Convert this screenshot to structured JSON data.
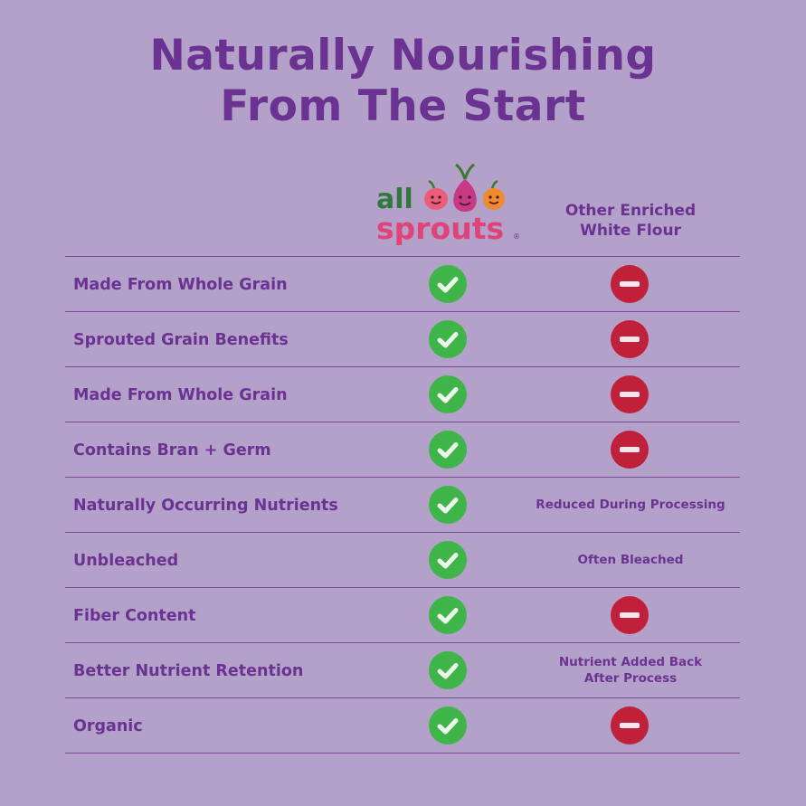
{
  "title": {
    "line1": "Naturally Nourishing",
    "line2": "From The Start"
  },
  "logo": {
    "word1": "all",
    "word2": "sprouts",
    "mark": "®",
    "colors": {
      "green": "#2f7a3a",
      "pink": "#e0427a",
      "orange": "#f08a2c",
      "magenta": "#c93883",
      "stem": "#3a7a2e"
    }
  },
  "columns": {
    "other_header_line1": "Other Enriched",
    "other_header_line2": "White Flour"
  },
  "icons": {
    "yes": "check-circle-icon",
    "no": "minus-circle-icon",
    "yes_color": "#3fb549",
    "no_color": "#c1203a"
  },
  "rows": [
    {
      "label": "Made From Whole Grain",
      "other": "no"
    },
    {
      "label": "Sprouted Grain Benefits",
      "other": "no"
    },
    {
      "label": "Made From Whole Grain",
      "other": "no"
    },
    {
      "label": "Contains Bran + Germ",
      "other": "no"
    },
    {
      "label": "Naturally Occurring Nutrients",
      "other": "text",
      "other_text": "Reduced During Processing"
    },
    {
      "label": "Unbleached",
      "other": "text",
      "other_text": "Often Bleached"
    },
    {
      "label": "Fiber Content",
      "other": "no"
    },
    {
      "label": "Better Nutrient Retention",
      "other": "text",
      "other_text_line1": "Nutrient Added Back",
      "other_text_line2": "After Process"
    },
    {
      "label": "Organic",
      "other": "no"
    }
  ]
}
